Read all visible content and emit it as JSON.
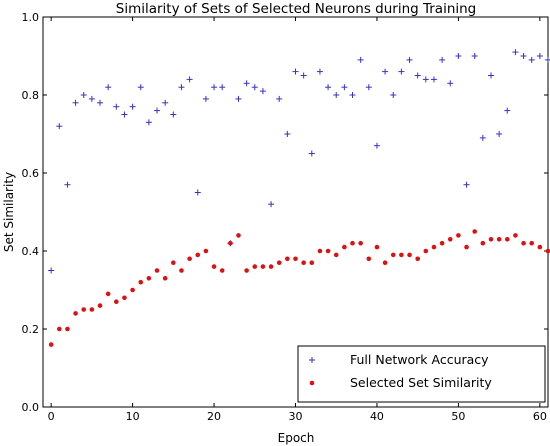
{
  "chart_data": {
    "type": "scatter",
    "title": "Similarity of Sets of Selected Neurons during Training",
    "xlabel": "Epoch",
    "ylabel": "Set Similarity",
    "xlim": [
      -1,
      61
    ],
    "ylim": [
      0,
      1
    ],
    "xticks": [
      0,
      10,
      20,
      30,
      40,
      50,
      60
    ],
    "yticks": [
      0.0,
      0.2,
      0.4,
      0.6,
      0.8,
      1.0
    ],
    "xtick_labels": [
      "0",
      "10",
      "20",
      "30",
      "40",
      "50",
      "60"
    ],
    "ytick_labels": [
      "0.0",
      "0.2",
      "0.4",
      "0.6",
      "0.8",
      "1.0"
    ],
    "grid": false,
    "legend_position": "bottom-right",
    "series": [
      {
        "name": "Full Network Accuracy",
        "marker": "plus",
        "color": "#3333cc",
        "x": [
          0,
          1,
          2,
          3,
          4,
          5,
          6,
          7,
          8,
          9,
          10,
          11,
          12,
          13,
          14,
          15,
          16,
          17,
          18,
          19,
          20,
          21,
          22,
          23,
          24,
          25,
          26,
          27,
          28,
          29,
          30,
          31,
          32,
          33,
          34,
          35,
          36,
          37,
          38,
          39,
          40,
          41,
          42,
          43,
          44,
          45,
          46,
          47,
          48,
          49,
          50,
          51,
          52,
          53,
          54,
          55,
          56,
          57,
          58,
          59,
          60,
          61
        ],
        "y": [
          0.35,
          0.72,
          0.57,
          0.78,
          0.8,
          0.79,
          0.78,
          0.82,
          0.77,
          0.75,
          0.77,
          0.82,
          0.73,
          0.76,
          0.78,
          0.75,
          0.82,
          0.84,
          0.55,
          0.79,
          0.82,
          0.82,
          0.42,
          0.79,
          0.83,
          0.82,
          0.81,
          0.52,
          0.79,
          0.7,
          0.86,
          0.85,
          0.65,
          0.86,
          0.82,
          0.8,
          0.82,
          0.8,
          0.89,
          0.82,
          0.67,
          0.86,
          0.8,
          0.86,
          0.89,
          0.85,
          0.84,
          0.84,
          0.89,
          0.83,
          0.9,
          0.57,
          0.9,
          0.69,
          0.85,
          0.7,
          0.76,
          0.91,
          0.9,
          0.89,
          0.9,
          0.89
        ]
      },
      {
        "name": "Selected Set Similarity",
        "marker": "dot",
        "color": "#dd1111",
        "x": [
          0,
          1,
          2,
          3,
          4,
          5,
          6,
          7,
          8,
          9,
          10,
          11,
          12,
          13,
          14,
          15,
          16,
          17,
          18,
          19,
          20,
          21,
          22,
          23,
          24,
          25,
          26,
          27,
          28,
          29,
          30,
          31,
          32,
          33,
          34,
          35,
          36,
          37,
          38,
          39,
          40,
          41,
          42,
          43,
          44,
          45,
          46,
          47,
          48,
          49,
          50,
          51,
          52,
          53,
          54,
          55,
          56,
          57,
          58,
          59,
          60,
          61
        ],
        "y": [
          0.16,
          0.2,
          0.2,
          0.24,
          0.25,
          0.25,
          0.26,
          0.29,
          0.27,
          0.28,
          0.3,
          0.32,
          0.33,
          0.35,
          0.33,
          0.37,
          0.35,
          0.38,
          0.39,
          0.4,
          0.36,
          0.35,
          0.42,
          0.44,
          0.35,
          0.36,
          0.36,
          0.36,
          0.37,
          0.38,
          0.38,
          0.37,
          0.37,
          0.4,
          0.4,
          0.39,
          0.41,
          0.42,
          0.42,
          0.38,
          0.41,
          0.37,
          0.39,
          0.39,
          0.39,
          0.38,
          0.4,
          0.41,
          0.42,
          0.43,
          0.44,
          0.41,
          0.45,
          0.42,
          0.43,
          0.43,
          0.43,
          0.44,
          0.42,
          0.42,
          0.41,
          0.4
        ]
      }
    ]
  }
}
